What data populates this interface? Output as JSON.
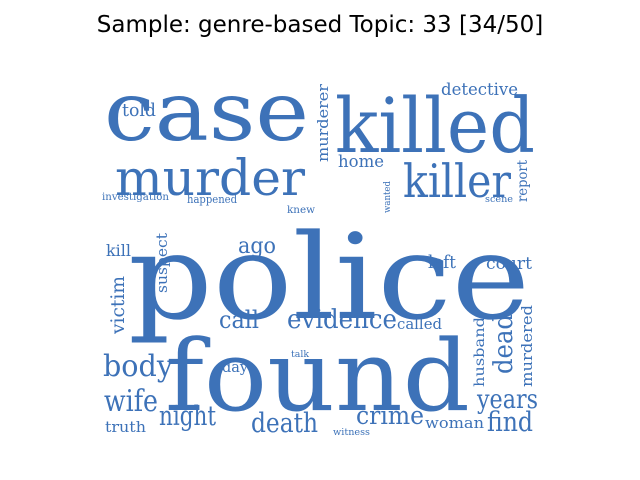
{
  "title": "Sample: genre-based Topic: 33 [34/50]",
  "word_color": "#3d72b8",
  "words": {
    "police": "police",
    "found": "found",
    "case": "case",
    "killed": "killed",
    "murder": "murder",
    "killer": "killer",
    "evidence": "evidence",
    "body": "body",
    "wife": "wife",
    "night": "night",
    "death": "death",
    "crime": "crime",
    "years": "years",
    "find": "find",
    "dead": "dead",
    "murdered": "murdered",
    "husband": "husband",
    "victim": "victim",
    "suspect": "suspect",
    "kill": "kill",
    "ago": "ago",
    "call": "call",
    "called": "called",
    "left": "left",
    "court": "court",
    "report": "report",
    "scene": "scene",
    "wanted": "wanted",
    "knew": "knew",
    "home": "home",
    "murderer": "murderer",
    "detective": "detective",
    "told": "told",
    "investigation": "investigation",
    "happened": "happened",
    "day": "day",
    "talk": "talk",
    "truth": "truth",
    "woman": "woman",
    "witness": "witness"
  }
}
